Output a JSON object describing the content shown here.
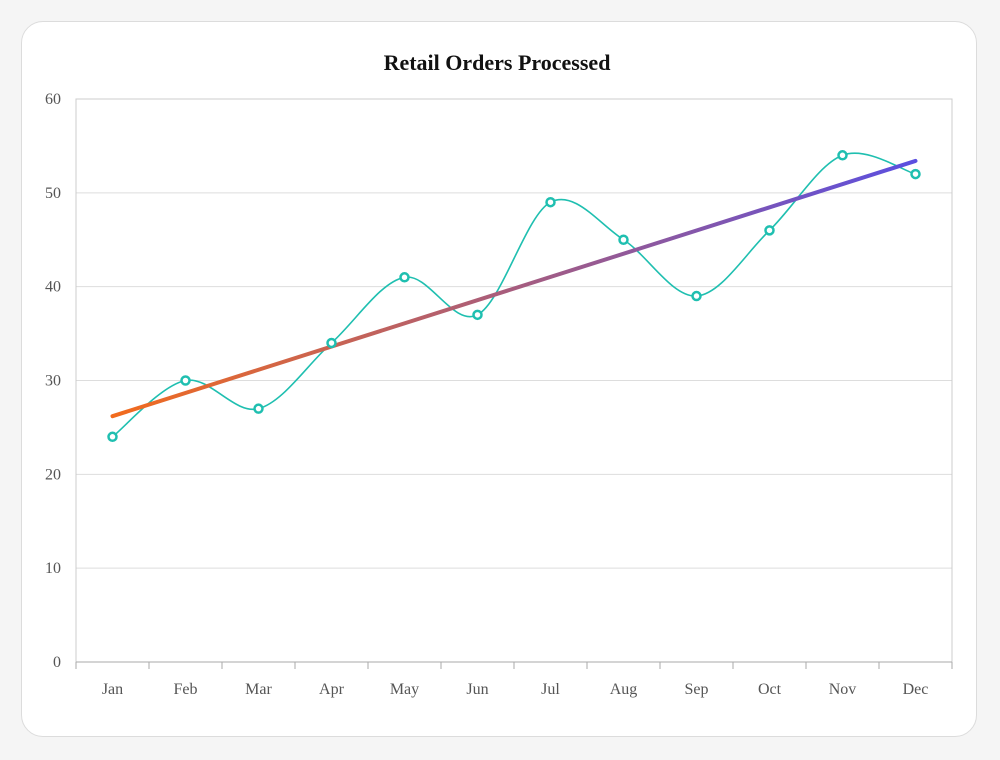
{
  "chart_data": {
    "type": "line",
    "title": "Retail Orders Processed",
    "xlabel": "",
    "ylabel": "",
    "categories": [
      "Jan",
      "Feb",
      "Mar",
      "Apr",
      "May",
      "Jun",
      "Jul",
      "Aug",
      "Sep",
      "Oct",
      "Nov",
      "Dec"
    ],
    "series": [
      {
        "values": [
          24,
          30,
          27,
          34,
          41,
          37,
          49,
          45,
          39,
          46,
          54,
          52
        ],
        "color": "#1fbfb0",
        "style": "smooth line with hollow circle markers"
      }
    ],
    "trendline": {
      "start": 26.2,
      "end": 53.4,
      "gradient_from": "#f26b1d",
      "gradient_to": "#5b4fe0"
    },
    "ylim": [
      0,
      60
    ],
    "yticks": [
      0,
      10,
      20,
      30,
      40,
      50,
      60
    ],
    "grid": "horizontal",
    "legend": "none"
  }
}
